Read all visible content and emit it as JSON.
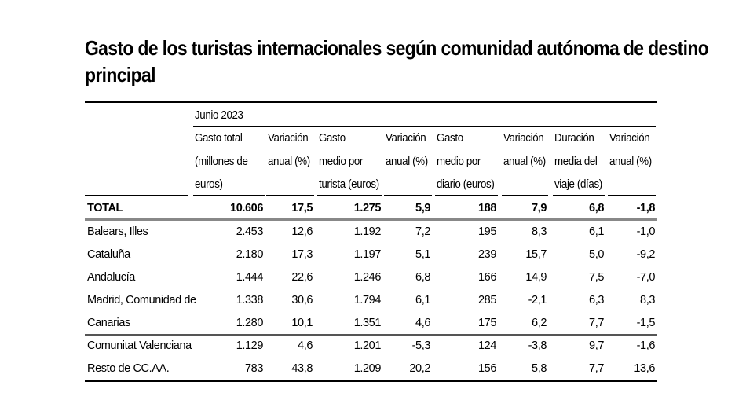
{
  "title_line1": "Gasto de los turistas internacionales según comunidad autónoma de destino",
  "title_line2": "principal",
  "period": "Junio 2023",
  "columns": [
    [
      "Gasto total",
      "(millones de",
      "euros)"
    ],
    [
      "Variación",
      "anual (%)",
      ""
    ],
    [
      "Gasto",
      "medio por",
      "turista (euros)"
    ],
    [
      "Variación",
      "anual (%)",
      ""
    ],
    [
      "Gasto",
      "medio por",
      "diario (euros)"
    ],
    [
      "Variación",
      "anual (%)",
      ""
    ],
    [
      "Duración",
      "media del",
      "viaje (días)"
    ],
    [
      "Variación",
      "anual (%)",
      ""
    ]
  ],
  "total": {
    "label": "TOTAL",
    "values": [
      "10.606",
      "17,5",
      "1.275",
      "5,9",
      "188",
      "7,9",
      "6,8",
      "-1,8"
    ]
  },
  "rows": [
    {
      "label": "Balears, Illes",
      "values": [
        "2.453",
        "12,6",
        "1.192",
        "7,2",
        "195",
        "8,3",
        "6,1",
        "-1,0"
      ]
    },
    {
      "label": "Cataluña",
      "values": [
        "2.180",
        "17,3",
        "1.197",
        "5,1",
        "239",
        "15,7",
        "5,0",
        "-9,2"
      ]
    },
    {
      "label": "Andalucía",
      "values": [
        "1.444",
        "22,6",
        "1.246",
        "6,8",
        "166",
        "14,9",
        "7,5",
        "-7,0"
      ]
    },
    {
      "label": "Madrid, Comunidad de",
      "values": [
        "1.338",
        "30,6",
        "1.794",
        "6,1",
        "285",
        "-2,1",
        "6,3",
        "8,3"
      ]
    },
    {
      "label": "Canarias",
      "values": [
        "1.280",
        "10,1",
        "1.351",
        "4,6",
        "175",
        "6,2",
        "7,7",
        "-1,5"
      ]
    },
    {
      "label": "Comunitat Valenciana",
      "values": [
        "1.129",
        "4,6",
        "1.201",
        "-5,3",
        "124",
        "-3,8",
        "9,7",
        "-1,6"
      ]
    },
    {
      "label": "Resto de CC.AA.",
      "values": [
        "783",
        "43,8",
        "1.209",
        "20,2",
        "156",
        "5,8",
        "7,7",
        "13,6"
      ]
    }
  ]
}
